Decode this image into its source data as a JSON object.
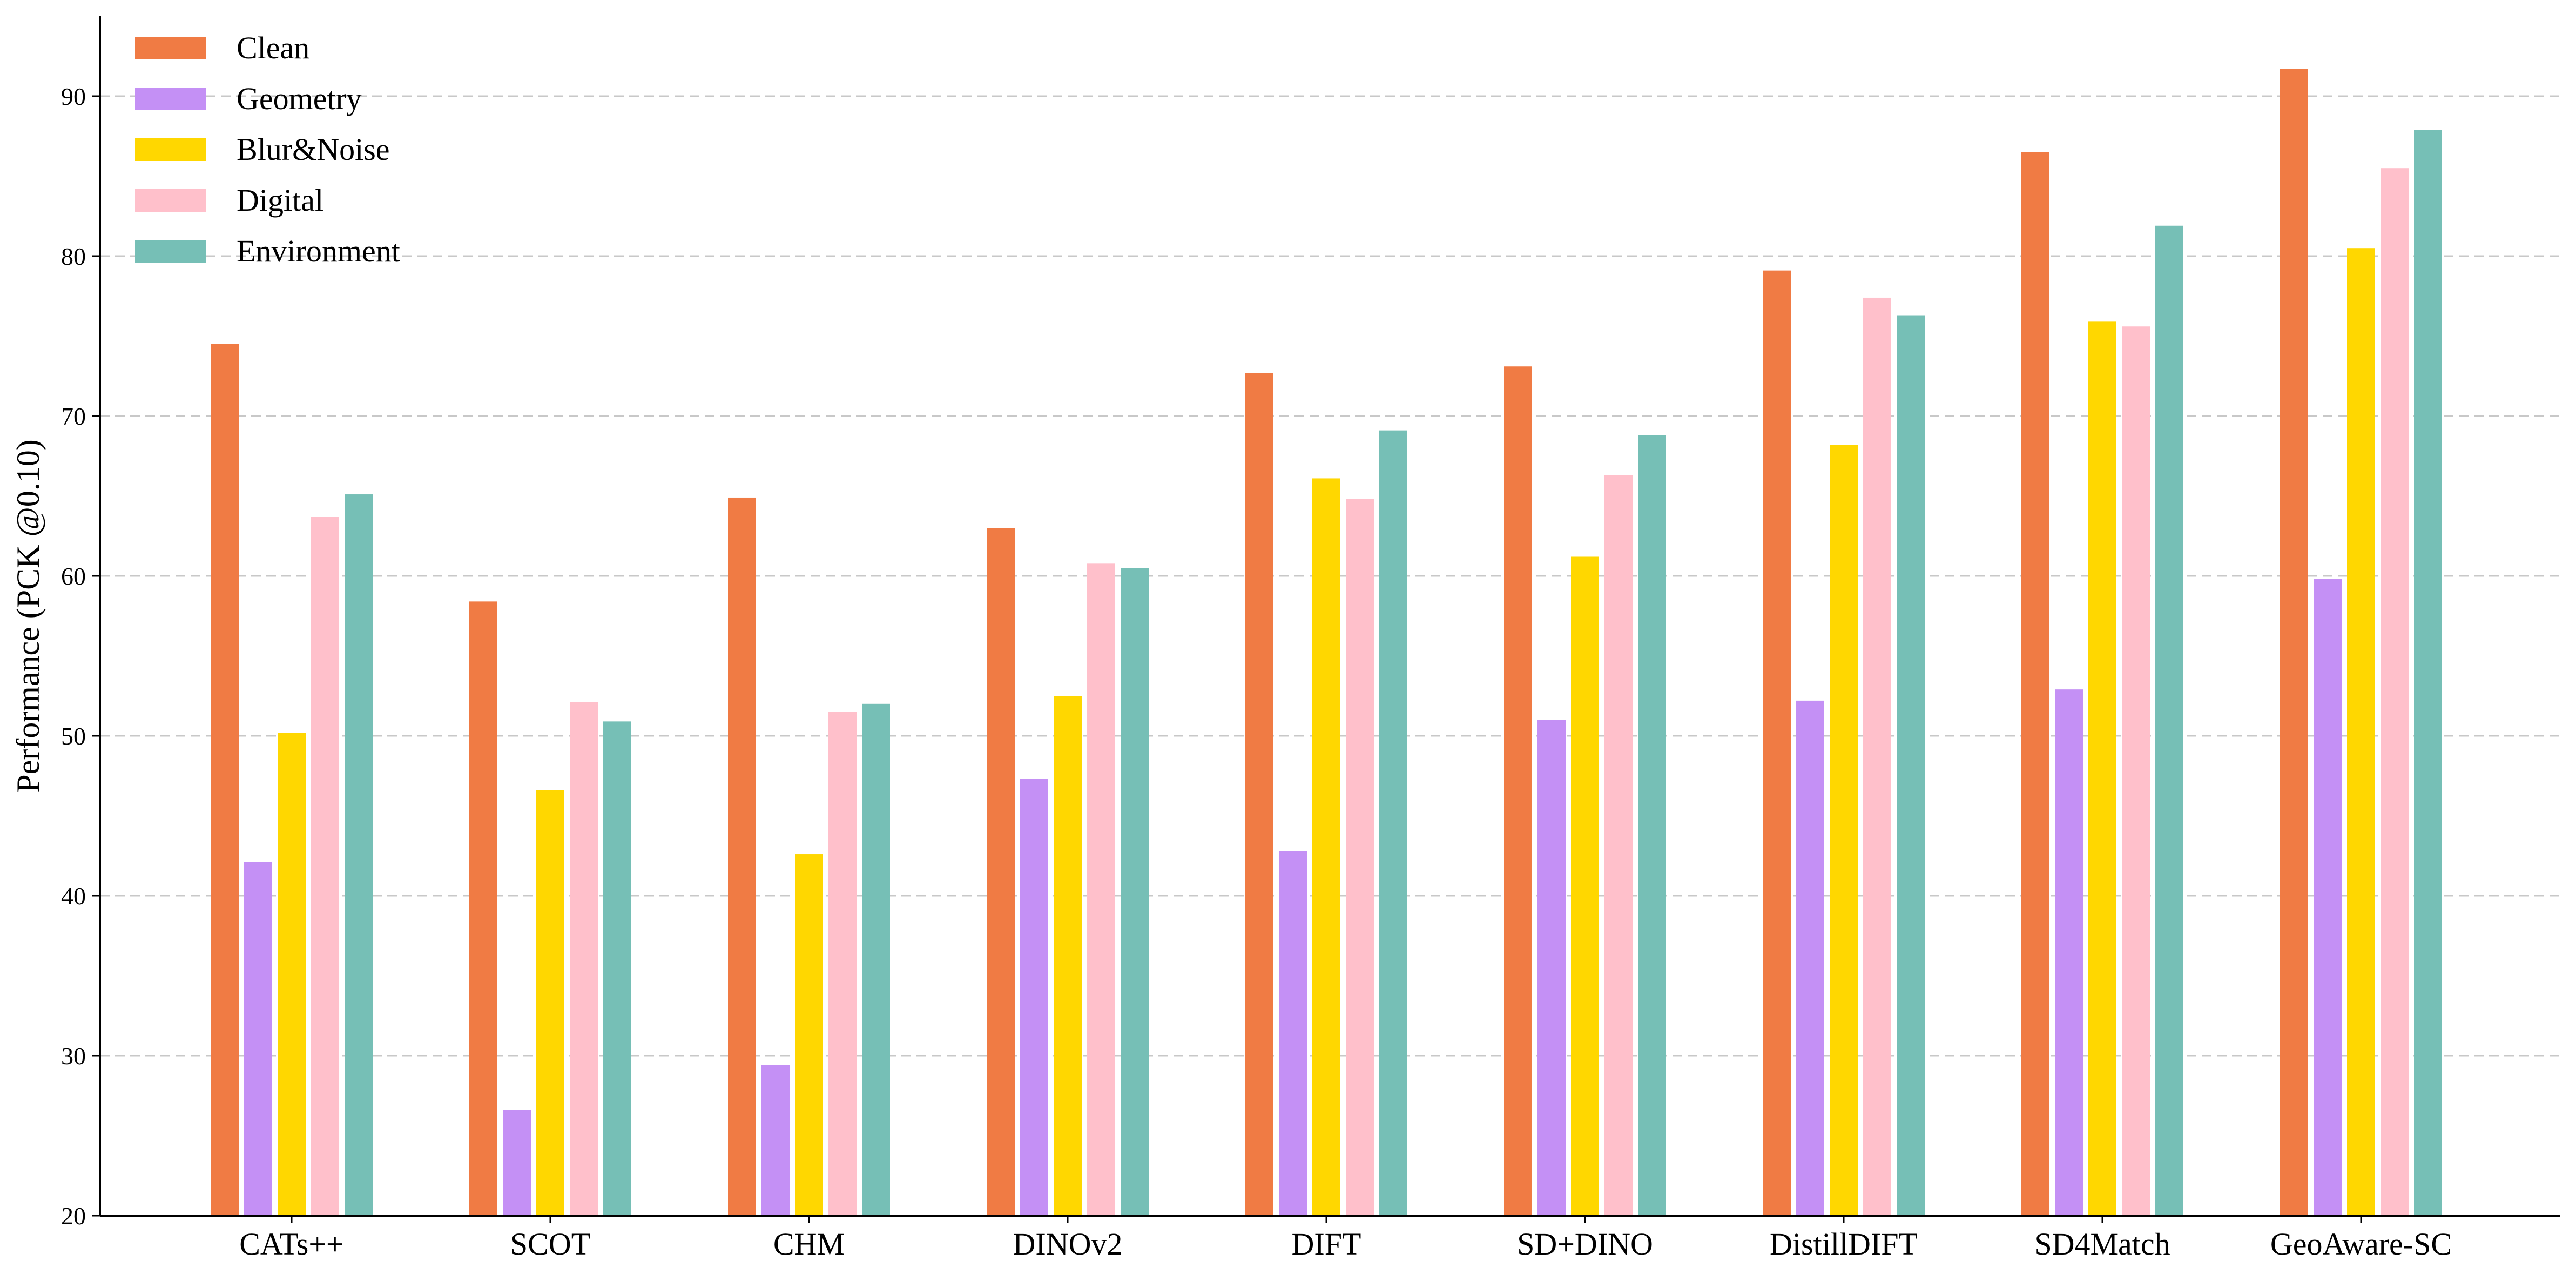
{
  "chart_data": {
    "type": "bar",
    "title": "",
    "xlabel": "",
    "ylabel": "Performance (PCK @0.10)",
    "ylim": [
      20,
      95
    ],
    "yticks": [
      20,
      30,
      40,
      50,
      60,
      70,
      80,
      90
    ],
    "grid": "y-dashed",
    "legend_position": "top-left",
    "categories": [
      "CATs++",
      "SCOT",
      "CHM",
      "DINOv2",
      "DIFT",
      "SD+DINO",
      "DistillDIFT",
      "SD4Match",
      "GeoAware-SC"
    ],
    "series": [
      {
        "name": "Clean",
        "color": "#f07b44",
        "values": [
          74.5,
          58.4,
          64.9,
          63.0,
          72.7,
          73.1,
          79.1,
          86.5,
          91.7
        ]
      },
      {
        "name": "Geometry",
        "color": "#c490f5",
        "values": [
          42.1,
          26.6,
          29.4,
          47.3,
          42.8,
          51.0,
          52.2,
          52.9,
          59.8
        ]
      },
      {
        "name": "Blur&Noise",
        "color": "#ffd700",
        "values": [
          50.2,
          46.6,
          42.6,
          52.5,
          66.1,
          61.2,
          68.2,
          75.9,
          80.5
        ]
      },
      {
        "name": "Digital",
        "color": "#ffc0cb",
        "values": [
          63.7,
          52.1,
          51.5,
          60.8,
          64.8,
          66.3,
          77.4,
          75.6,
          85.5
        ]
      },
      {
        "name": "Environment",
        "color": "#76bfb6",
        "values": [
          65.1,
          50.9,
          52.0,
          60.5,
          69.1,
          68.8,
          76.3,
          81.9,
          87.9
        ]
      }
    ]
  }
}
